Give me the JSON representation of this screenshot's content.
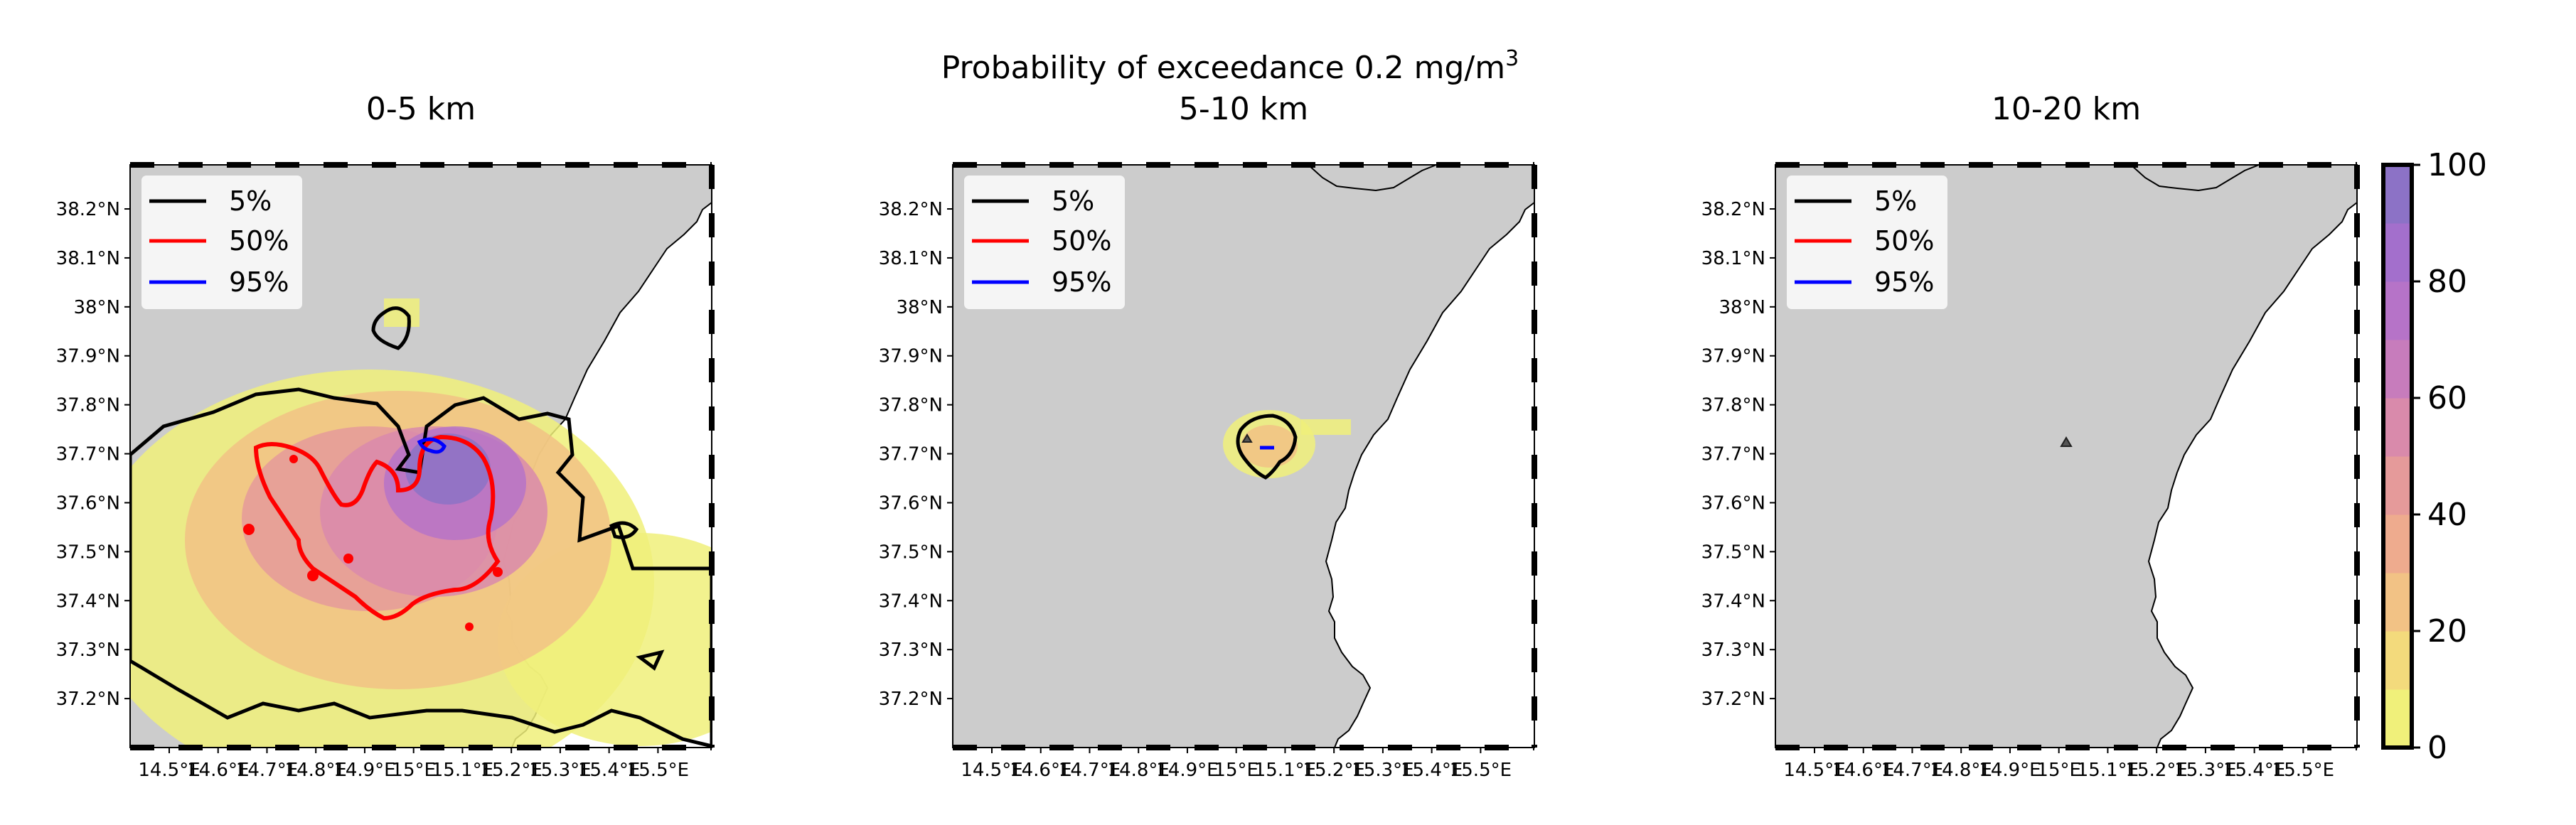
{
  "figure": {
    "title_main": "Probability of exceedance 0.2 mg/m",
    "title_sup": "3"
  },
  "chart_data": [
    {
      "type": "heatmap",
      "title": "0-5 km",
      "x_ticks": [
        "14.5°E",
        "14.6°E",
        "14.7°E",
        "14.8°E",
        "14.9°E",
        "15°E",
        "15.1°E",
        "15.2°E",
        "15.3°E",
        "15.4°E",
        "15.5°E"
      ],
      "y_ticks": [
        "38.2°N",
        "38.1°N",
        "38°N",
        "37.9°N",
        "37.8°N",
        "37.7°N",
        "37.6°N",
        "37.5°N",
        "37.4°N",
        "37.3°N",
        "37.2°N"
      ],
      "xlim": [
        14.42,
        15.61
      ],
      "ylim": [
        37.1,
        38.29
      ],
      "legend": [
        "5%",
        "50%",
        "95%"
      ],
      "contour_levels": [
        5,
        50,
        95
      ],
      "max_probability": 95,
      "peak_center": [
        15.08,
        37.65
      ]
    },
    {
      "type": "heatmap",
      "title": "5-10 km",
      "x_ticks": [
        "14.5°E",
        "14.6°E",
        "14.7°E",
        "14.8°E",
        "14.9°E",
        "15°E",
        "15.1°E",
        "15.2°E",
        "15.3°E",
        "15.4°E",
        "15.5°E"
      ],
      "y_ticks": [
        "38.2°N",
        "38.1°N",
        "38°N",
        "37.9°N",
        "37.8°N",
        "37.7°N",
        "37.6°N",
        "37.5°N",
        "37.4°N",
        "37.3°N",
        "37.2°N"
      ],
      "xlim": [
        14.42,
        15.61
      ],
      "ylim": [
        37.1,
        38.29
      ],
      "legend": [
        "5%",
        "50%",
        "95%"
      ],
      "contour_levels": [
        5,
        50,
        95
      ],
      "max_probability": 55,
      "peak_center": [
        15.05,
        37.71
      ]
    },
    {
      "type": "heatmap",
      "title": "10-20 km",
      "x_ticks": [
        "14.5°E",
        "14.6°E",
        "14.7°E",
        "14.8°E",
        "14.9°E",
        "15°E",
        "15.1°E",
        "15.2°E",
        "15.3°E",
        "15.4°E",
        "15.5°E"
      ],
      "y_ticks": [
        "38.2°N",
        "38.1°N",
        "38°N",
        "37.9°N",
        "37.8°N",
        "37.7°N",
        "37.6°N",
        "37.5°N",
        "37.4°N",
        "37.3°N",
        "37.2°N"
      ],
      "xlim": [
        14.42,
        15.61
      ],
      "ylim": [
        37.1,
        38.29
      ],
      "legend": [
        "5%",
        "50%",
        "95%"
      ],
      "contour_levels": [
        5,
        50,
        95
      ],
      "max_probability": 0,
      "peak_center": [
        15.0,
        37.73
      ]
    }
  ],
  "colorbar": {
    "ticks": [
      "0",
      "20",
      "40",
      "60",
      "80",
      "100"
    ],
    "min": 0,
    "max": 100,
    "colors": [
      "#f0f07a",
      "#f3da7c",
      "#f2c285",
      "#eeab8e",
      "#e59a9a",
      "#d98aab",
      "#c77cbc",
      "#b673c8",
      "#a36fcc",
      "#8c72c6"
    ]
  },
  "contour_colors": {
    "5%": "#000000",
    "50%": "#ff0000",
    "95%": "#0000ff"
  },
  "land_color": "#cccccc",
  "volcano_marker": "triangle-icon"
}
